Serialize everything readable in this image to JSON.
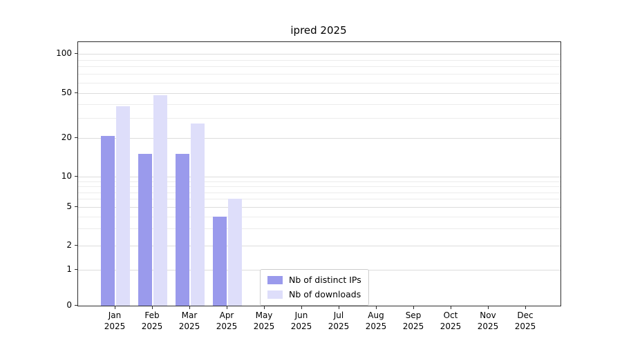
{
  "chart_data": {
    "type": "bar",
    "title": "ipred 2025",
    "categories": [
      "Jan",
      "Feb",
      "Mar",
      "Apr",
      "May",
      "Jun",
      "Jul",
      "Aug",
      "Sep",
      "Oct",
      "Nov",
      "Dec"
    ],
    "year": "2025",
    "series": [
      {
        "name": "Nb of distinct IPs",
        "color": "#9a9aec",
        "values": [
          21,
          15,
          15,
          4,
          0,
          0,
          0,
          0,
          0,
          0,
          0,
          0
        ]
      },
      {
        "name": "Nb of downloads",
        "color": "#dedefa",
        "values": [
          38,
          48,
          27,
          6,
          0,
          0,
          0,
          0,
          0,
          0,
          0,
          0
        ]
      }
    ],
    "yticks": [
      0,
      1,
      2,
      5,
      10,
      20,
      50,
      100
    ],
    "minor_yticks": [
      3,
      4,
      6,
      7,
      8,
      9,
      30,
      40,
      60,
      70,
      80,
      90
    ],
    "ylim": [
      0,
      110
    ],
    "yscale": "log-like",
    "xlabel": "",
    "ylabel": "",
    "grid": "horizontal",
    "legend_position": "inside-bottom-center"
  }
}
